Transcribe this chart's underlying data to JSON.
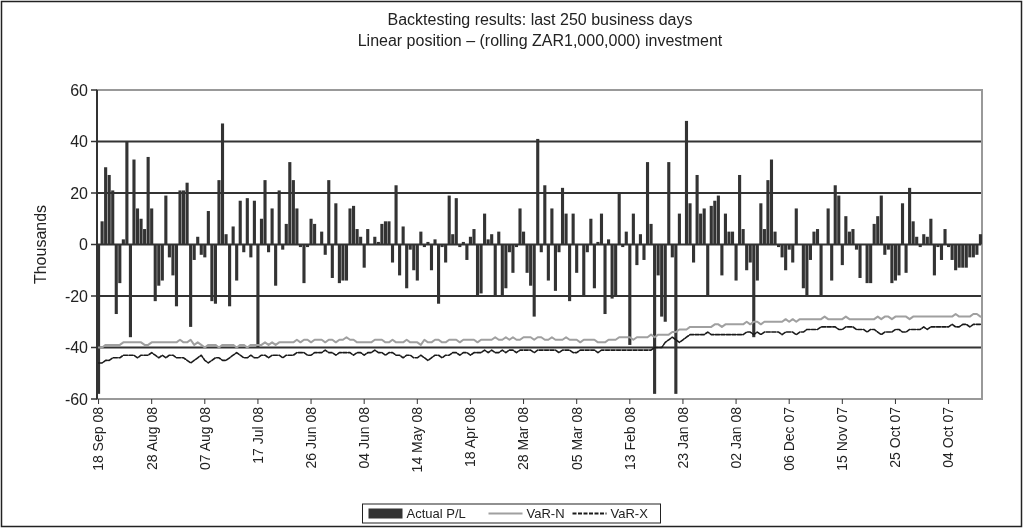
{
  "chart_data": {
    "type": "bar",
    "title": "Backtesting results: last 250 business days",
    "subtitle": "Linear position – (rolling ZAR1,000,000) investment",
    "ylabel": "Thousands",
    "categories": [
      "18 Sep 08",
      null,
      null,
      null,
      null,
      null,
      null,
      null,
      null,
      null,
      null,
      null,
      null,
      null,
      null,
      "28 Aug 08",
      null,
      null,
      null,
      null,
      null,
      null,
      null,
      null,
      null,
      null,
      null,
      null,
      null,
      null,
      "07 Aug 08",
      null,
      null,
      null,
      null,
      null,
      null,
      null,
      null,
      null,
      null,
      null,
      null,
      null,
      null,
      "17 Jul 08",
      null,
      null,
      null,
      null,
      null,
      null,
      null,
      null,
      null,
      null,
      null,
      null,
      null,
      null,
      "26 Jun 08",
      null,
      null,
      null,
      null,
      null,
      null,
      null,
      null,
      null,
      null,
      null,
      null,
      null,
      null,
      "04 Jun 08",
      null,
      null,
      null,
      null,
      null,
      null,
      null,
      null,
      null,
      null,
      null,
      null,
      null,
      null,
      "14 May 08",
      null,
      null,
      null,
      null,
      null,
      null,
      null,
      null,
      null,
      null,
      null,
      null,
      null,
      null,
      "18 Apr 08",
      null,
      null,
      null,
      null,
      null,
      null,
      null,
      null,
      null,
      null,
      null,
      null,
      null,
      null,
      "28 Mar 08",
      null,
      null,
      null,
      null,
      null,
      null,
      null,
      null,
      null,
      null,
      null,
      null,
      null,
      null,
      "05 Mar 08",
      null,
      null,
      null,
      null,
      null,
      null,
      null,
      null,
      null,
      null,
      null,
      null,
      null,
      null,
      "13 Feb 08",
      null,
      null,
      null,
      null,
      null,
      null,
      null,
      null,
      null,
      null,
      null,
      null,
      null,
      null,
      "23 Jan 08",
      null,
      null,
      null,
      null,
      null,
      null,
      null,
      null,
      null,
      null,
      null,
      null,
      null,
      null,
      "02 Jan 08",
      null,
      null,
      null,
      null,
      null,
      null,
      null,
      null,
      null,
      null,
      null,
      null,
      null,
      null,
      "06 Dec 07",
      null,
      null,
      null,
      null,
      null,
      null,
      null,
      null,
      null,
      null,
      null,
      null,
      null,
      null,
      "15 Nov 07",
      null,
      null,
      null,
      null,
      null,
      null,
      null,
      null,
      null,
      null,
      null,
      null,
      null,
      null,
      "25 Oct 07",
      null,
      null,
      null,
      null,
      null,
      null,
      null,
      null,
      null,
      null,
      null,
      null,
      null,
      null,
      "04 Oct 07",
      null,
      null,
      null,
      null,
      null,
      null,
      null,
      null,
      null
    ],
    "series": [
      {
        "name": "Actual P/L",
        "color": "#333333",
        "values": [
          -58,
          9,
          30,
          27,
          21,
          -27,
          -15,
          2,
          40,
          -36,
          33,
          14,
          10,
          6,
          34,
          14,
          -22,
          -16,
          -14,
          19,
          -5,
          -12,
          -24,
          21,
          21,
          24,
          -32,
          -6,
          3,
          -4,
          -5,
          13,
          -22,
          -23,
          25,
          47,
          4,
          -24,
          7,
          -14,
          17,
          -3,
          18,
          -5,
          17,
          -40,
          10,
          25,
          -3,
          14,
          -16,
          21,
          -2,
          8,
          32,
          25,
          14,
          -1,
          -15,
          -1,
          10,
          8,
          0,
          5,
          -4,
          25,
          -13,
          16,
          -15,
          -14,
          -14,
          14,
          15,
          6,
          3,
          -9,
          6,
          0,
          3,
          1,
          8,
          9,
          9,
          -7,
          23,
          -12,
          7,
          -17,
          -2,
          -10,
          -14,
          5,
          -1,
          1,
          -10,
          2,
          -23,
          -1,
          -7,
          19,
          4,
          18,
          -1,
          1,
          -6,
          3,
          6,
          -20,
          -19,
          12,
          2,
          4,
          -20,
          5,
          -20,
          -17,
          -3,
          -11,
          -1,
          14,
          5,
          -11,
          -16,
          -28,
          41,
          -3,
          23,
          -14,
          14,
          -18,
          -3,
          22,
          12,
          -22,
          12,
          -11,
          0,
          -20,
          -3,
          10,
          -17,
          1,
          12,
          -27,
          2,
          -21,
          -20,
          20,
          -1,
          5,
          -39,
          12,
          -8,
          4,
          -6,
          32,
          8,
          -58,
          -12,
          -28,
          -30,
          32,
          -5,
          -58,
          12,
          0,
          48,
          16,
          -7,
          27,
          12,
          14,
          -20,
          15,
          17,
          19,
          -12,
          12,
          5,
          5,
          -14,
          27,
          6,
          -10,
          -7,
          -36,
          -14,
          16,
          6,
          25,
          33,
          5,
          -1,
          -5,
          -10,
          -2,
          -7,
          14,
          0,
          -17,
          -20,
          -6,
          5,
          6,
          -20,
          0,
          14,
          -14,
          23,
          19,
          -8,
          11,
          5,
          6,
          -2,
          -13,
          0,
          -15,
          -15,
          8,
          11,
          19,
          -4,
          -2,
          -15,
          -14,
          -12,
          16,
          -11,
          22,
          9,
          3,
          -1,
          4,
          3,
          10,
          -12,
          -1,
          -6,
          6,
          -1,
          -6,
          -10,
          -9,
          -9,
          -9,
          -5,
          -5,
          -4,
          4
        ]
      },
      {
        "name": "VaR-N",
        "type": "line",
        "color": "#a0a0a0",
        "line_style": "solid",
        "values": [
          -40,
          -40,
          -39,
          -39,
          -39,
          -39,
          -39,
          -38,
          -38,
          -38,
          -38,
          -38,
          -38,
          -39,
          -39,
          -38,
          -38,
          -38,
          -38,
          -38,
          -38,
          -38,
          -38,
          -37,
          -38,
          -38,
          -37,
          -39,
          -38,
          -39,
          -40,
          -39,
          -39,
          -39,
          -40,
          -39,
          -39,
          -39,
          -39,
          -40,
          -39,
          -39,
          -40,
          -39,
          -39,
          -39,
          -39,
          -38,
          -39,
          -38,
          -39,
          -38,
          -38,
          -38,
          -38,
          -38,
          -37,
          -38,
          -37,
          -37,
          -38,
          -37,
          -37,
          -37,
          -38,
          -37,
          -37,
          -38,
          -37,
          -37,
          -36,
          -37,
          -37,
          -38,
          -38,
          -38,
          -38,
          -38,
          -37,
          -37,
          -37,
          -38,
          -38,
          -37,
          -38,
          -38,
          -38,
          -37,
          -38,
          -38,
          -38,
          -39,
          -37,
          -38,
          -38,
          -37,
          -37,
          -38,
          -38,
          -37,
          -37,
          -37,
          -38,
          -37,
          -37,
          -37,
          -37,
          -38,
          -37,
          -37,
          -37,
          -37,
          -36,
          -37,
          -37,
          -36,
          -37,
          -36,
          -37,
          -37,
          -36,
          -36,
          -36,
          -37,
          -36,
          -36,
          -37,
          -37,
          -36,
          -37,
          -37,
          -37,
          -36,
          -37,
          -37,
          -37,
          -38,
          -37,
          -37,
          -37,
          -37,
          -38,
          -38,
          -38,
          -37,
          -37,
          -37,
          -36,
          -36,
          -36,
          -36,
          -37,
          -36,
          -36,
          -36,
          -36,
          -35,
          -36,
          -35,
          -35,
          -35,
          -35,
          -34,
          -34,
          -33,
          -33,
          -33,
          -32,
          -32,
          -32,
          -32,
          -32,
          -32,
          -32,
          -31,
          -31,
          -32,
          -31,
          -31,
          -31,
          -31,
          -31,
          -31,
          -30,
          -31,
          -30,
          -30,
          -31,
          -30,
          -30,
          -30,
          -30,
          -30,
          -30,
          -29,
          -30,
          -29,
          -30,
          -29,
          -29,
          -29,
          -29,
          -29,
          -29,
          -29,
          -28,
          -29,
          -29,
          -29,
          -29,
          -29,
          -28,
          -29,
          -29,
          -29,
          -29,
          -29,
          -29,
          -29,
          -29,
          -28,
          -29,
          -28,
          -28,
          -29,
          -28,
          -28,
          -28,
          -28,
          -29,
          -28,
          -28,
          -28,
          -28,
          -28,
          -28,
          -28,
          -28,
          -28,
          -28,
          -28,
          -28,
          -27,
          -28,
          -28,
          -28,
          -28,
          -27,
          -27,
          -28
        ]
      },
      {
        "name": "VaR-X",
        "type": "line",
        "color": "#1a1a1a",
        "line_style": "dashed",
        "values": [
          -46,
          -46,
          -45,
          -45,
          -44,
          -44,
          -44,
          -43,
          -43,
          -43,
          -43,
          -44,
          -43,
          -43,
          -43,
          -42,
          -43,
          -44,
          -43,
          -44,
          -43,
          -43,
          -44,
          -44,
          -44,
          -45,
          -46,
          -45,
          -44,
          -43,
          -45,
          -46,
          -45,
          -44,
          -44,
          -45,
          -45,
          -44,
          -43,
          -42,
          -43,
          -44,
          -44,
          -43,
          -44,
          -44,
          -43,
          -43,
          -44,
          -43,
          -43,
          -43,
          -44,
          -43,
          -43,
          -43,
          -42,
          -42,
          -42,
          -43,
          -43,
          -42,
          -42,
          -42,
          -41,
          -42,
          -42,
          -43,
          -42,
          -42,
          -42,
          -42,
          -43,
          -42,
          -42,
          -43,
          -42,
          -42,
          -41,
          -42,
          -42,
          -43,
          -42,
          -42,
          -43,
          -43,
          -44,
          -43,
          -43,
          -44,
          -44,
          -43,
          -44,
          -45,
          -44,
          -43,
          -43,
          -44,
          -43,
          -43,
          -42,
          -42,
          -43,
          -42,
          -42,
          -43,
          -42,
          -42,
          -42,
          -41,
          -42,
          -41,
          -42,
          -42,
          -41,
          -42,
          -41,
          -41,
          -42,
          -41,
          -41,
          -41,
          -41,
          -42,
          -41,
          -41,
          -41,
          -41,
          -41,
          -41,
          -42,
          -41,
          -41,
          -41,
          -42,
          -42,
          -41,
          -41,
          -41,
          -41,
          -41,
          -42,
          -41,
          -41,
          -41,
          -41,
          -41,
          -41,
          -41,
          -41,
          -41,
          -41,
          -41,
          -41,
          -41,
          -41,
          -41,
          -40,
          -40,
          -40,
          -38,
          -37,
          -36,
          -37,
          -38,
          -37,
          -36,
          -35,
          -35,
          -35,
          -35,
          -35,
          -34,
          -35,
          -35,
          -35,
          -35,
          -35,
          -35,
          -35,
          -35,
          -35,
          -35,
          -34,
          -34,
          -35,
          -34,
          -35,
          -34,
          -34,
          -34,
          -34,
          -34,
          -35,
          -34,
          -34,
          -34,
          -35,
          -34,
          -34,
          -33,
          -33,
          -33,
          -33,
          -32,
          -32,
          -32,
          -32,
          -32,
          -33,
          -33,
          -32,
          -32,
          -32,
          -33,
          -33,
          -33,
          -34,
          -33,
          -33,
          -34,
          -35,
          -34,
          -34,
          -34,
          -33,
          -33,
          -34,
          -34,
          -33,
          -33,
          -33,
          -33,
          -32,
          -33,
          -32,
          -32,
          -32,
          -32,
          -32,
          -32,
          -31,
          -32,
          -32,
          -31,
          -31,
          -32,
          -31,
          -31,
          -31
        ]
      }
    ],
    "ylim": [
      -60,
      60
    ],
    "yticks": [
      -60,
      -40,
      -20,
      0,
      20,
      40,
      60
    ],
    "grid": "y",
    "legend": "bottom"
  }
}
